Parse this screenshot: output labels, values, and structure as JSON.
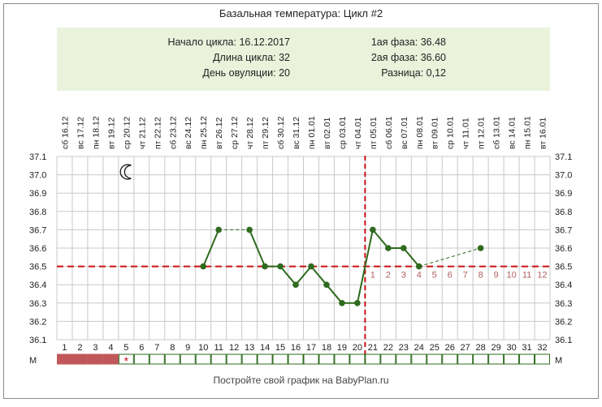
{
  "title": "Базальная температура: Цикл #2",
  "info": {
    "cycle_start": "Начало цикла: 16.12.2017",
    "cycle_length": "Длина цикла: 32",
    "ovulation_day": "День овуляции: 20",
    "phase1": "1ая фаза: 36.48",
    "phase2": "2ая фаза: 36.60",
    "difference": "Разница: 0,12"
  },
  "footer": "Постройте свой график на BabyPlan.ru",
  "m_label": "М",
  "moon_icon": "crescent-moon-icon",
  "colors": {
    "line": "#2e6b1e",
    "point": "#2e6b1e",
    "coverline": "#cc1111",
    "grid": "#c8c8c8",
    "menstruation": "#c0575a",
    "phase_numbers": "#b06060",
    "info_bg": "#eaf2dc"
  },
  "chart_data": {
    "type": "line",
    "x_days": [
      1,
      2,
      3,
      4,
      5,
      6,
      7,
      8,
      9,
      10,
      11,
      12,
      13,
      14,
      15,
      16,
      17,
      18,
      19,
      20,
      21,
      22,
      23,
      24,
      25,
      26,
      27,
      28,
      29,
      30,
      31,
      32
    ],
    "weekdays": [
      "сб",
      "вс",
      "пн",
      "вт",
      "ср",
      "чт",
      "пт",
      "сб",
      "вс",
      "пн",
      "вт",
      "ср",
      "чт",
      "пт",
      "сб",
      "вс",
      "пн",
      "вт",
      "ср",
      "чт",
      "пт",
      "сб",
      "вс",
      "пн",
      "вт",
      "ср",
      "чт",
      "пт",
      "сб",
      "вс",
      "пн",
      "вт"
    ],
    "dates": [
      "16.12",
      "17.12",
      "18.12",
      "19.12",
      "20.12",
      "21.12",
      "22.12",
      "23.12",
      "24.12",
      "25.12",
      "26.12",
      "27.12",
      "28.12",
      "29.12",
      "30.12",
      "31.12",
      "01.01",
      "02.01",
      "03.01",
      "04.01",
      "05.01",
      "06.01",
      "07.01",
      "08.01",
      "09.01",
      "10.01",
      "11.01",
      "12.01",
      "13.01",
      "14.01",
      "15.01",
      "16.01"
    ],
    "ylim": [
      36.1,
      37.1
    ],
    "yticks": [
      "37.1",
      "37.0",
      "36.9",
      "36.8",
      "36.7",
      "36.6",
      "36.5",
      "36.4",
      "36.3",
      "36.2",
      "36.1"
    ],
    "series": [
      {
        "points": [
          [
            10,
            36.5
          ],
          [
            11,
            36.7
          ],
          [
            13,
            36.7
          ],
          [
            14,
            36.5
          ],
          [
            15,
            36.5
          ],
          [
            16,
            36.4
          ],
          [
            17,
            36.5
          ],
          [
            18,
            36.4
          ],
          [
            19,
            36.3
          ],
          [
            20,
            36.3
          ],
          [
            21,
            36.7
          ],
          [
            22,
            36.6
          ],
          [
            23,
            36.6
          ],
          [
            24,
            36.5
          ],
          [
            28,
            36.6
          ]
        ]
      }
    ],
    "coverline": 36.5,
    "ovulation_day": 20,
    "phase2_numbers": [
      "1",
      "2",
      "3",
      "4",
      "5",
      "6",
      "7",
      "8",
      "9",
      "10",
      "11",
      "12"
    ],
    "menstruation_days": [
      1,
      2,
      3,
      4
    ],
    "marker_day": 5,
    "marker_symbol": "*"
  }
}
